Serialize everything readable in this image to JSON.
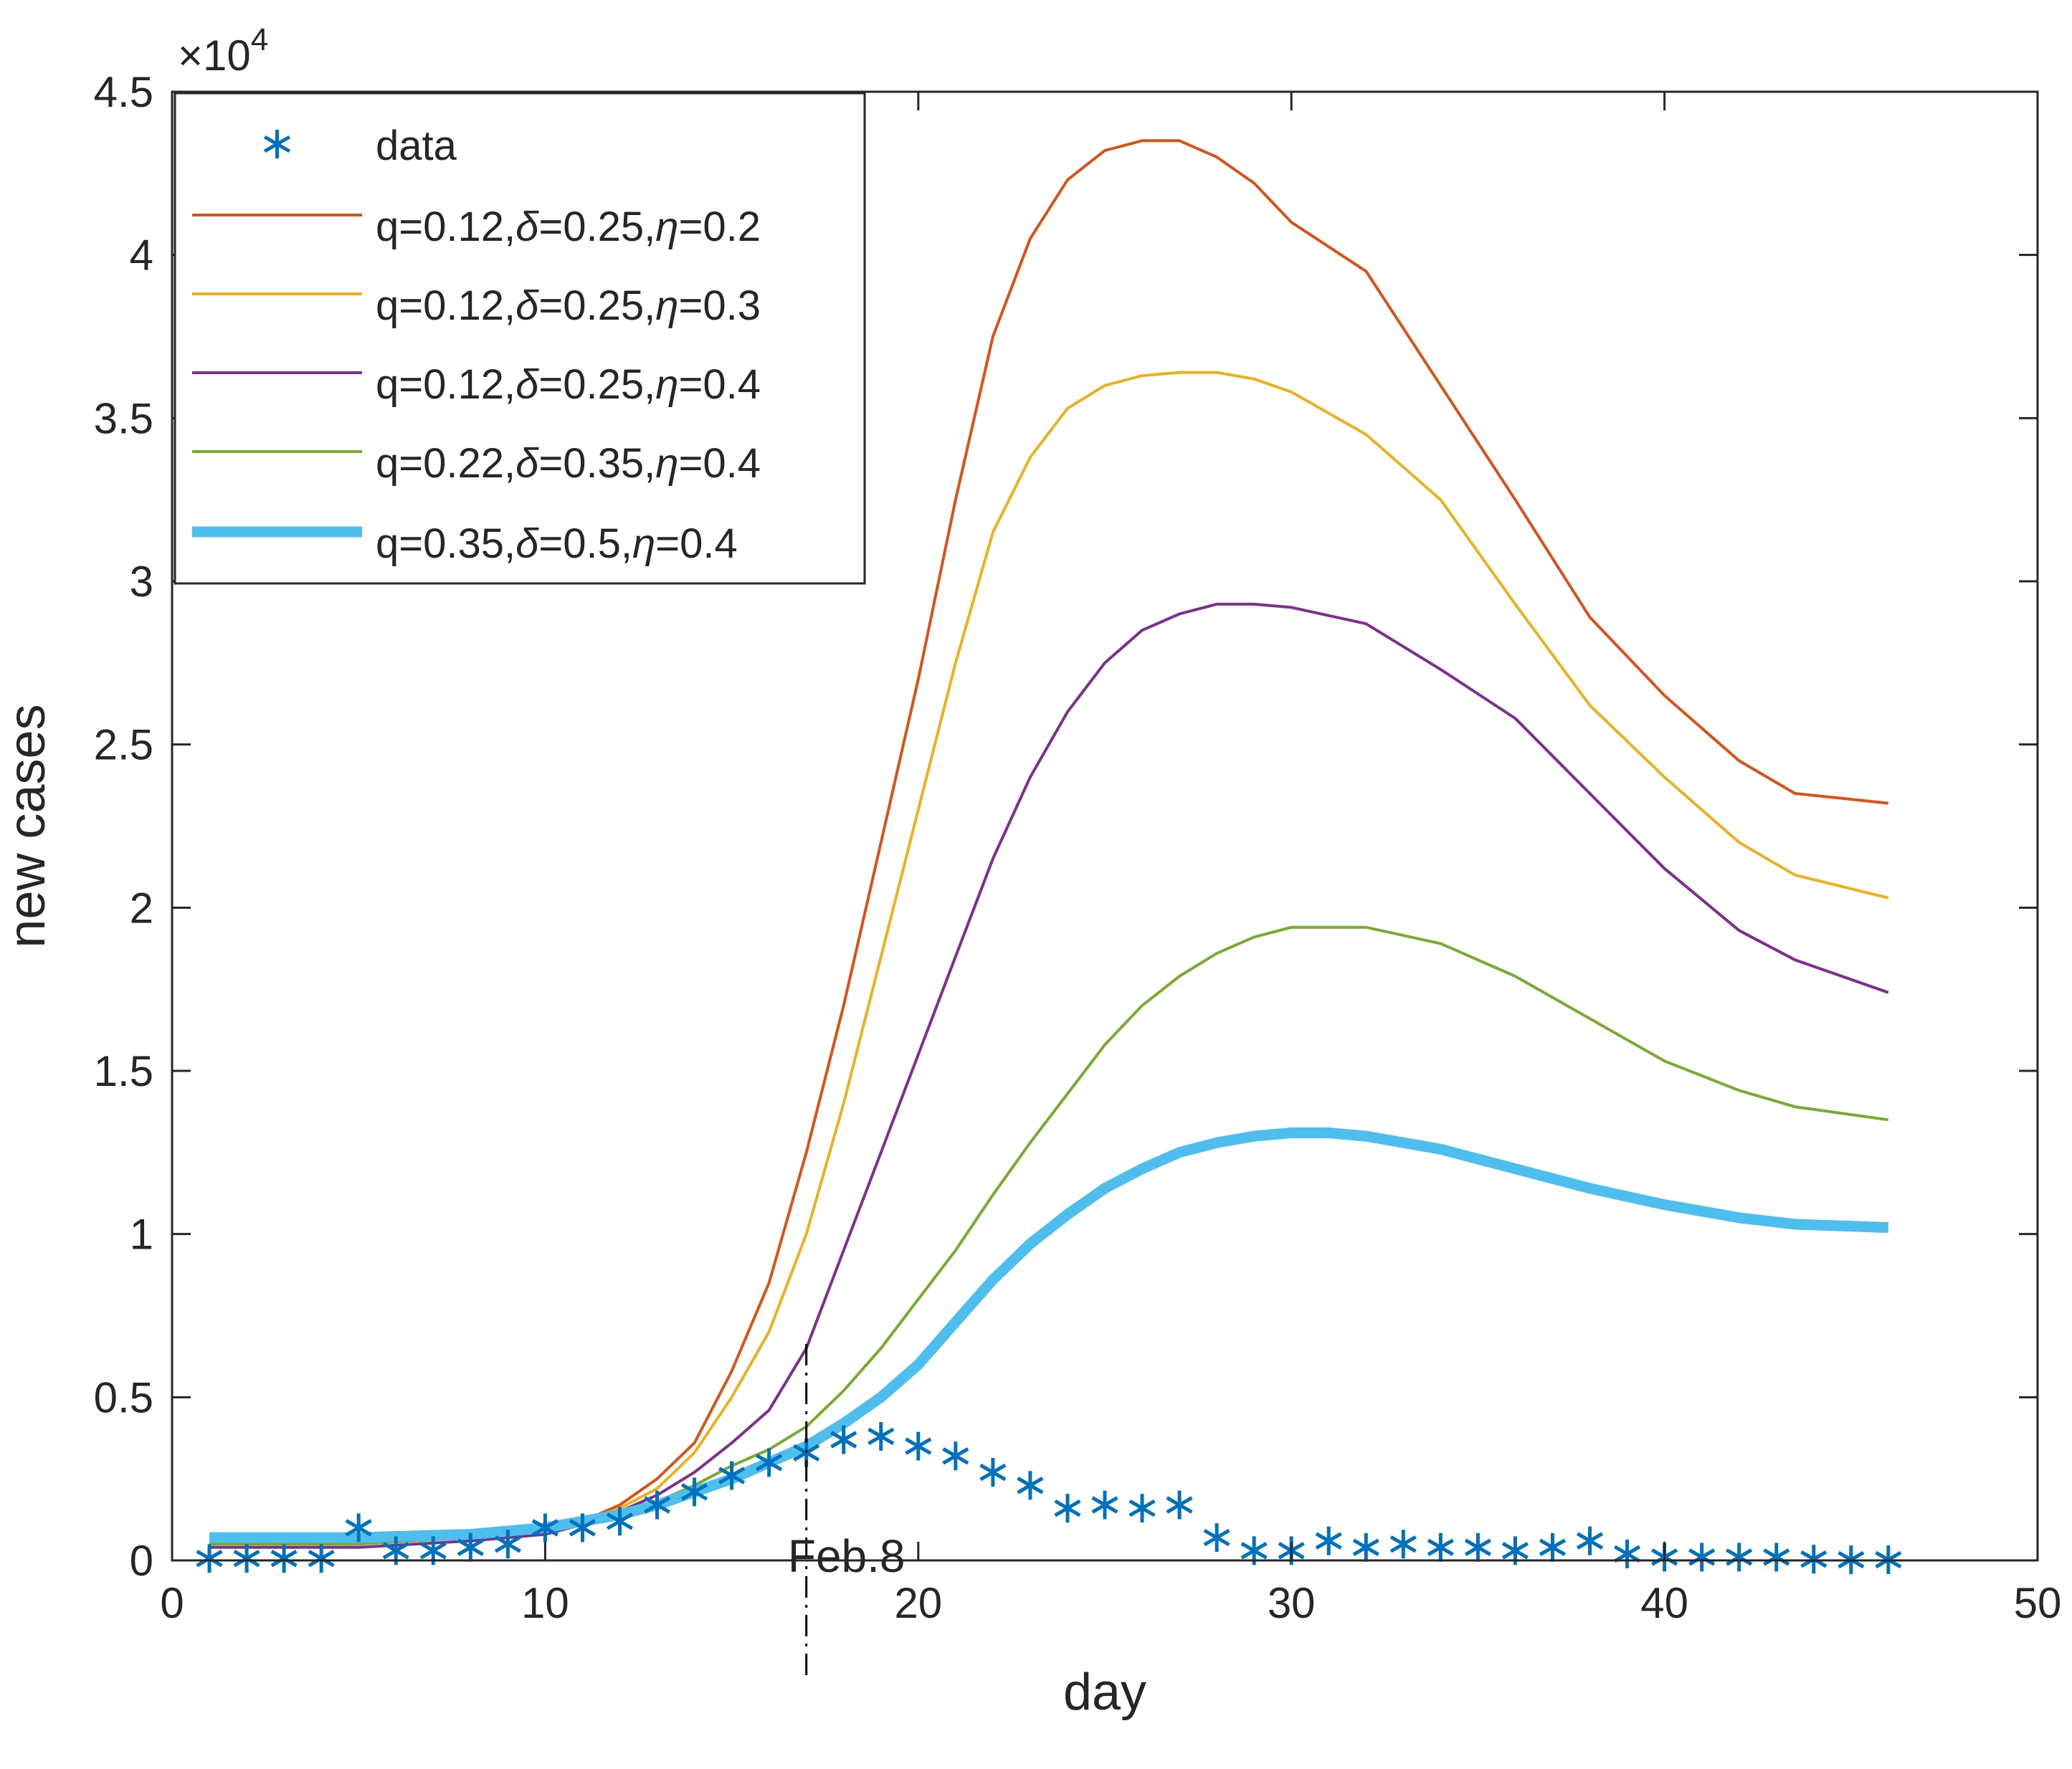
{
  "chart_data": {
    "type": "line",
    "xlabel": "day",
    "ylabel": "new cases",
    "xlim": [
      0,
      50
    ],
    "ylim": [
      0,
      45000
    ],
    "xticks": [
      0,
      10,
      20,
      30,
      40,
      50
    ],
    "yticks": [
      0,
      5000,
      10000,
      15000,
      20000,
      25000,
      30000,
      35000,
      40000,
      45000
    ],
    "xtick_labels": [
      "0",
      "10",
      "20",
      "30",
      "40",
      "50"
    ],
    "ytick_labels": [
      "0",
      "0.5",
      "1",
      "1.5",
      "2",
      "2.5",
      "3",
      "3.5",
      "4",
      "4.5"
    ],
    "y_exponent": {
      "base": "×10",
      "power": "4"
    },
    "grid": false,
    "legend_position": "top-left",
    "annotation": {
      "text": "Feb.8",
      "x": 17
    },
    "legend": [
      {
        "text": "data"
      },
      {
        "parts": [
          "q=0.12,",
          "δ",
          "=0.25,",
          "η",
          "=0.2"
        ]
      },
      {
        "parts": [
          "q=0.12,",
          "δ",
          "=0.25,",
          "η",
          "=0.3"
        ]
      },
      {
        "parts": [
          "q=0.12,",
          "δ",
          "=0.25,",
          "η",
          "=0.4"
        ]
      },
      {
        "parts": [
          "q=0.22,",
          "δ",
          "=0.35,",
          "η",
          "=0.4"
        ]
      },
      {
        "parts": [
          "q=0.35,",
          "δ",
          "=0.5,",
          "η",
          "=0.4"
        ]
      }
    ],
    "scatter": {
      "name": "data",
      "color": "#0072BD",
      "x": [
        1,
        2,
        3,
        4,
        5,
        6,
        7,
        8,
        9,
        10,
        11,
        12,
        13,
        14,
        15,
        16,
        17,
        18,
        19,
        20,
        21,
        22,
        23,
        24,
        25,
        26,
        27,
        28,
        29,
        30,
        31,
        32,
        33,
        34,
        35,
        36,
        37,
        38,
        39,
        40,
        41,
        42,
        43,
        44,
        45,
        46
      ],
      "y": [
        60,
        60,
        60,
        60,
        1000,
        300,
        300,
        400,
        500,
        1000,
        1000,
        1200,
        1700,
        2100,
        2600,
        3000,
        3300,
        3700,
        3800,
        3500,
        3200,
        2700,
        2300,
        1600,
        1700,
        1600,
        1700,
        700,
        300,
        300,
        600,
        400,
        500,
        400,
        400,
        300,
        400,
        600,
        200,
        100,
        100,
        100,
        100,
        40,
        20,
        20
      ]
    },
    "series": [
      {
        "name": "q=0.12,δ=0.25,η=0.2",
        "color": "#D95319",
        "width": 4,
        "x": [
          1,
          5,
          8,
          10,
          11,
          12,
          13,
          14,
          15,
          16,
          17,
          18,
          19,
          20,
          21,
          22,
          23,
          24,
          25,
          26,
          27,
          28,
          29,
          30,
          32,
          34,
          36,
          38,
          40,
          42,
          43.5,
          46
        ],
        "y": [
          500,
          500,
          700,
          900,
          1200,
          1700,
          2500,
          3600,
          5800,
          8500,
          12500,
          17000,
          22000,
          27000,
          32500,
          37500,
          40500,
          42300,
          43200,
          43500,
          43500,
          43000,
          42200,
          41000,
          39500,
          36000,
          32500,
          28900,
          26500,
          24500,
          23500,
          23200
        ]
      },
      {
        "name": "q=0.12,δ=0.25,η=0.3",
        "color": "#EDB120",
        "width": 4,
        "x": [
          1,
          5,
          8,
          10,
          11,
          12,
          13,
          14,
          15,
          16,
          17,
          18,
          19,
          20,
          21,
          22,
          23,
          24,
          25,
          26,
          27,
          28,
          29,
          30,
          32,
          34,
          36,
          38,
          40,
          42,
          43.5,
          46
        ],
        "y": [
          500,
          500,
          700,
          900,
          1200,
          1600,
          2200,
          3300,
          5000,
          7000,
          10000,
          14000,
          18500,
          23000,
          27500,
          31500,
          33800,
          35300,
          36000,
          36300,
          36400,
          36400,
          36200,
          35800,
          34500,
          32500,
          29300,
          26200,
          24000,
          22000,
          21000,
          20300
        ]
      },
      {
        "name": "q=0.12,δ=0.25,η=0.4",
        "color": "#7E2F8E",
        "width": 4,
        "x": [
          1,
          5,
          8,
          10,
          11,
          12,
          13,
          14,
          15,
          16,
          17,
          18,
          19,
          20,
          21,
          22,
          23,
          24,
          25,
          26,
          27,
          28,
          29,
          30,
          32,
          34,
          36,
          38,
          40,
          42,
          43.5,
          46
        ],
        "y": [
          400,
          400,
          600,
          800,
          1100,
          1500,
          2000,
          2700,
          3600,
          4600,
          6500,
          9500,
          12500,
          15500,
          18500,
          21500,
          24000,
          26000,
          27500,
          28500,
          29000,
          29300,
          29300,
          29200,
          28700,
          27300,
          25800,
          23500,
          21200,
          19300,
          18400,
          17400
        ]
      },
      {
        "name": "q=0.22,δ=0.35,η=0.4",
        "color": "#77AC30",
        "width": 4,
        "x": [
          1,
          5,
          8,
          10,
          11,
          12,
          13,
          14,
          15,
          16,
          17,
          18,
          19,
          20,
          21,
          22,
          23,
          24,
          25,
          26,
          27,
          28,
          29,
          30,
          32,
          34,
          36,
          38,
          40,
          42,
          43.5,
          46
        ],
        "y": [
          500,
          500,
          700,
          900,
          1100,
          1400,
          1800,
          2300,
          2900,
          3400,
          4100,
          5200,
          6500,
          8000,
          9500,
          11200,
          12800,
          14300,
          15800,
          17000,
          17900,
          18600,
          19100,
          19400,
          19400,
          18900,
          17900,
          16600,
          15300,
          14400,
          13900,
          13500
        ]
      },
      {
        "name": "q=0.35,δ=0.5,η=0.4",
        "color": "#4DBEEE",
        "width": 15,
        "x": [
          1,
          5,
          8,
          10,
          11,
          12,
          13,
          14,
          15,
          16,
          17,
          18,
          19,
          20,
          21,
          22,
          23,
          24,
          25,
          26,
          27,
          28,
          29,
          30,
          31,
          32,
          34,
          36,
          38,
          40,
          42,
          43.5,
          46
        ],
        "y": [
          700,
          700,
          800,
          1000,
          1200,
          1400,
          1700,
          2100,
          2500,
          3000,
          3500,
          4200,
          5000,
          6000,
          7300,
          8600,
          9700,
          10600,
          11400,
          12000,
          12500,
          12800,
          13000,
          13100,
          13100,
          13000,
          12600,
          12000,
          11400,
          10900,
          10500,
          10300,
          10200
        ]
      }
    ]
  }
}
